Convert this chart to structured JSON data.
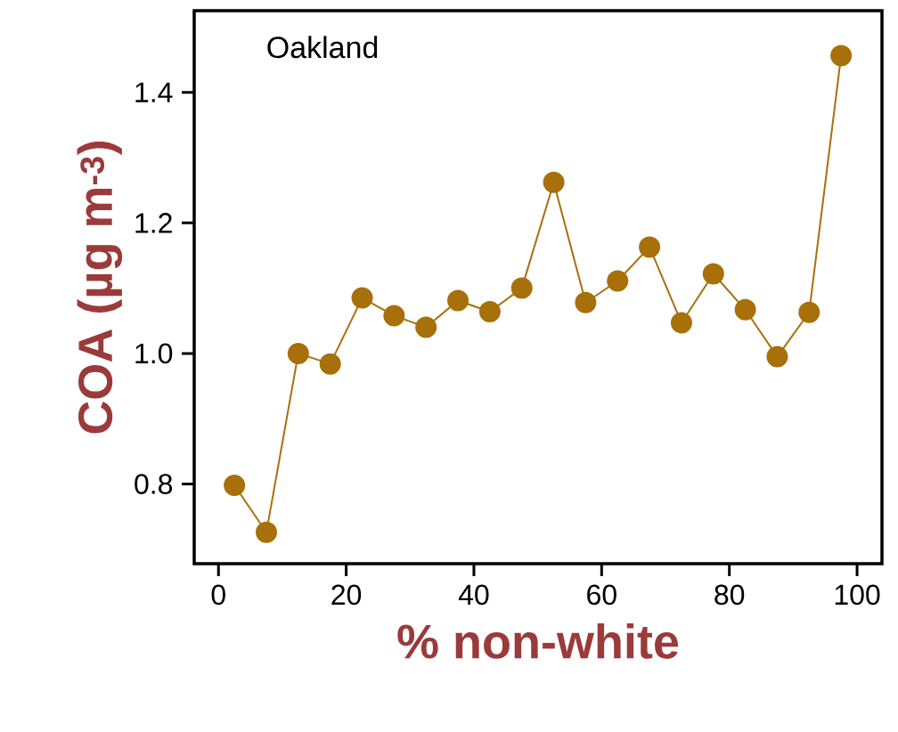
{
  "chart_data": {
    "type": "line",
    "xlabel": "% non-white",
    "ylabel": "COA (µg m$^{-3}$)",
    "annotations": [
      "Oakland"
    ],
    "x": [
      2.5,
      7.5,
      12.5,
      17.5,
      22.5,
      27.5,
      32.5,
      37.5,
      42.5,
      47.5,
      52.5,
      57.5,
      62.5,
      67.5,
      72.5,
      77.5,
      82.5,
      87.5,
      92.5,
      97.5
    ],
    "series": [
      {
        "color": "#a8700a",
        "values": [
          0.798,
          0.726,
          1.0,
          0.984,
          1.085,
          1.058,
          1.04,
          1.081,
          1.064,
          1.1,
          1.262,
          1.078,
          1.111,
          1.163,
          1.047,
          1.122,
          1.067,
          0.995,
          1.063,
          1.456
        ]
      }
    ],
    "marker": "circle",
    "line_style": "solid",
    "grid": false,
    "xlim": [
      -3.8,
      103.9
    ],
    "ylim": [
      0.678,
      1.525
    ],
    "xticks": [
      0,
      20,
      40,
      60,
      80,
      100
    ],
    "yticks": [
      0.8,
      {
        "value": 1.0,
        "label": "1.0"
      },
      1.2,
      1.4
    ]
  }
}
